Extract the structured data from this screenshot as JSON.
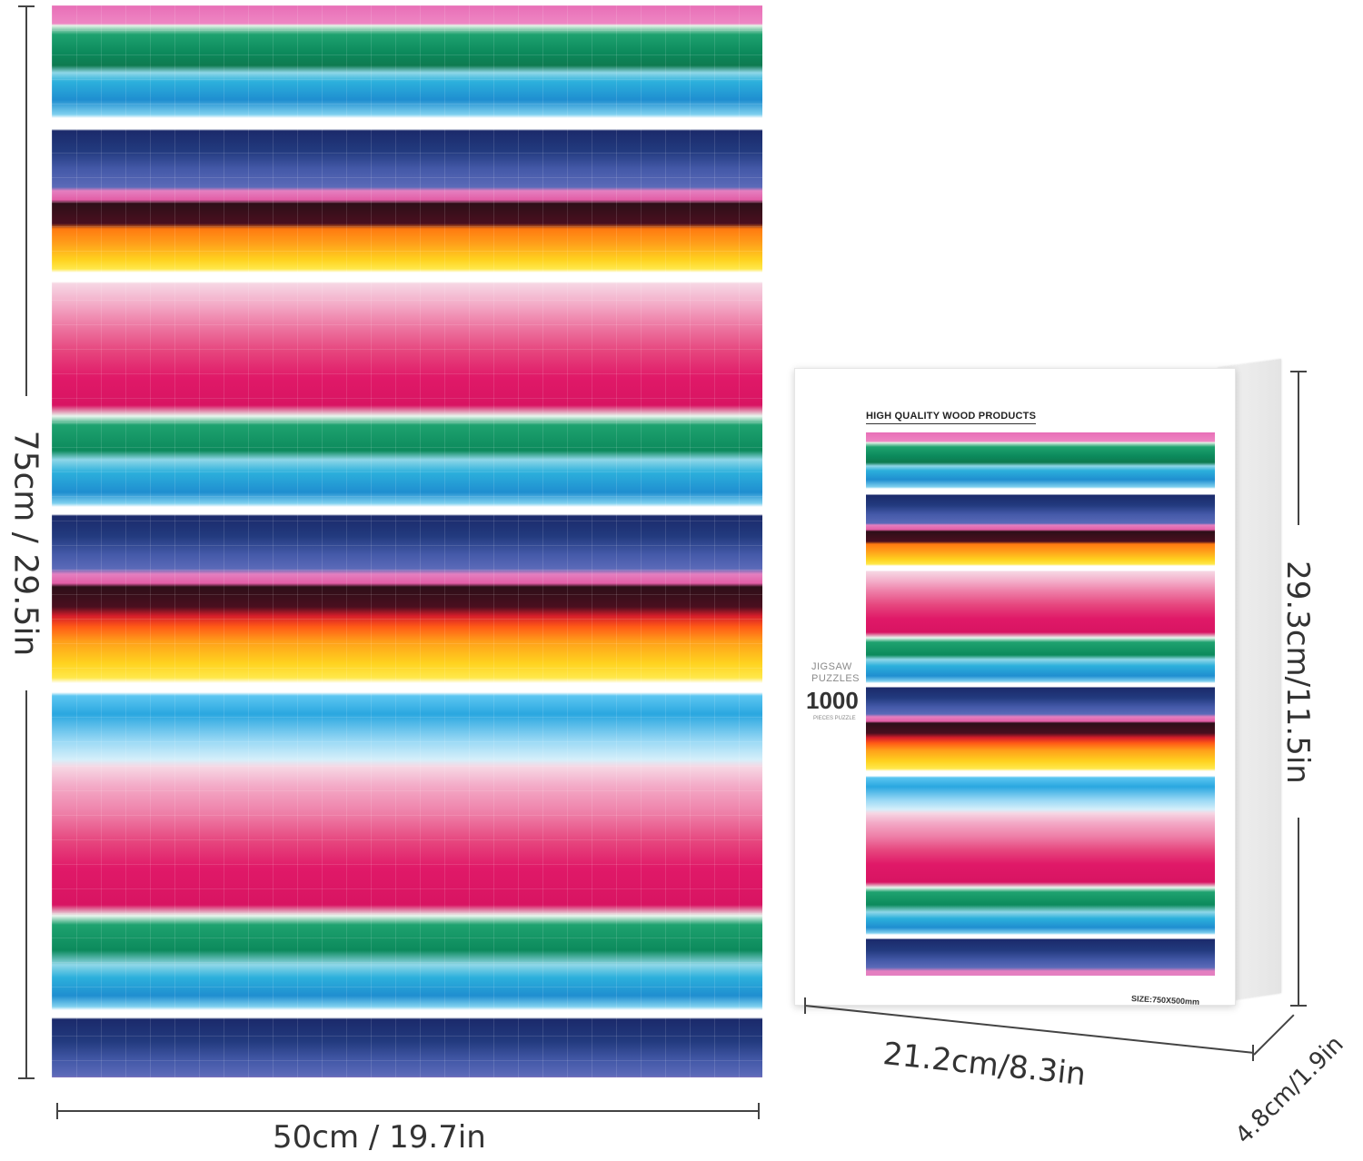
{
  "puzzle": {
    "height_label": "75cm / 29.5in",
    "width_label": "50cm / 19.7in"
  },
  "box": {
    "header": "HIGH QUALITY WOOD PRODUCTS",
    "brand_line1": "JIGSAW",
    "brand_line2": "PUZZLES",
    "count": "1000",
    "count_sub": "PIECES PUZZLE",
    "size_text": "SIZE:750X500mm",
    "height_label": "29.3cm/11.5in",
    "width_label": "21.2cm/8.3in",
    "depth_label": "4.8cm/1.9in"
  }
}
